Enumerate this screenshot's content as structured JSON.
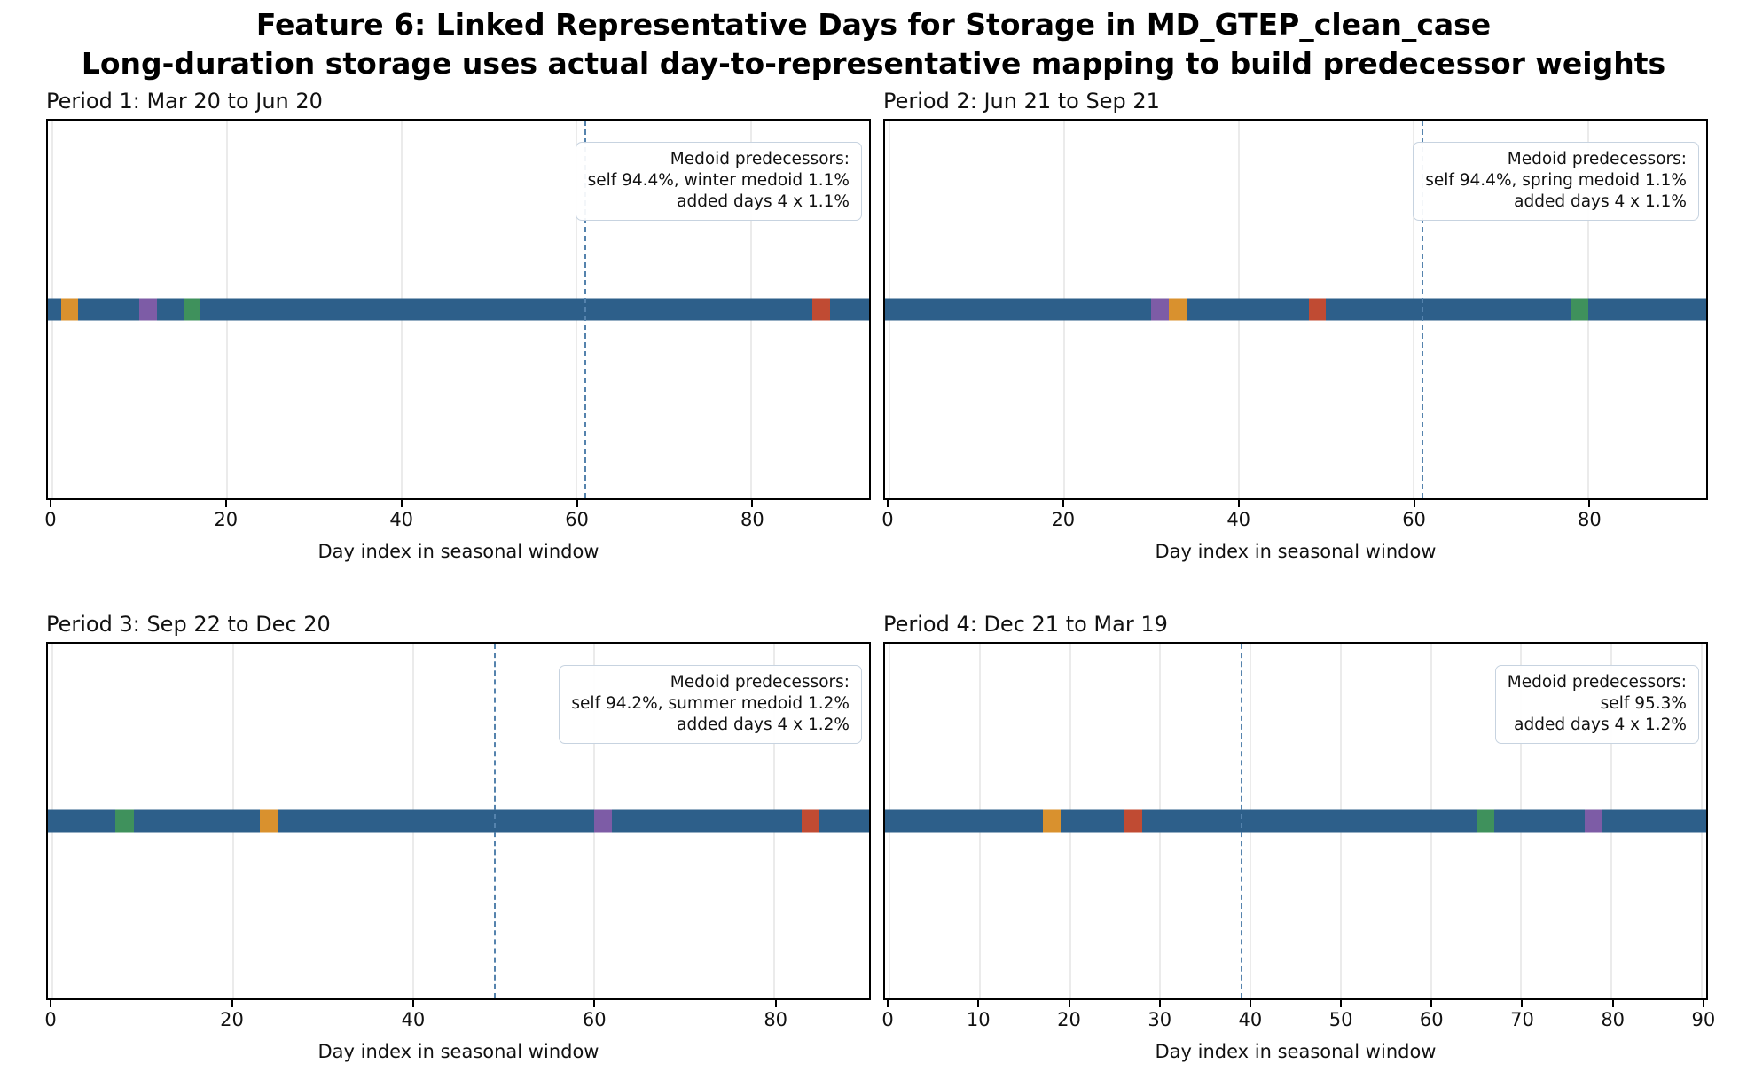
{
  "figure": {
    "title": "Feature 6: Linked Representative Days for Storage in MD_GTEP_clean_case",
    "subtitle": "Long-duration storage uses actual day-to-representative mapping to build predecessor weights"
  },
  "chart_data": {
    "type": "bar",
    "description": "Four horizontal day-timeline bars (one per seasonal period); blue = days mapped to self/representative, colored segments = added predecessor days; dashed vertical line = medoid day index",
    "colors": {
      "self": "#2d5f8a",
      "orange": "#d9912e",
      "purple": "#7d5ca6",
      "green": "#3f915c",
      "red": "#c04b33",
      "medoid_line": "#5583ad",
      "gridline": "#ebebeb",
      "annotation_border": "#c7d3e0"
    },
    "subplots": [
      {
        "title": "Period 1: Mar 20 to Jun 20",
        "xlabel": "Day index in seasonal window",
        "xlim": [
          -0.5,
          93.5
        ],
        "ticks": [
          0,
          20,
          40,
          60,
          80
        ],
        "medoid_line_day": 61,
        "bar_color_key": "self",
        "segments": [
          {
            "day_start": 1,
            "day_end": 3,
            "color_key": "orange"
          },
          {
            "day_start": 10,
            "day_end": 12,
            "color_key": "purple"
          },
          {
            "day_start": 15,
            "day_end": 17,
            "color_key": "green"
          },
          {
            "day_start": 87,
            "day_end": 89,
            "color_key": "red"
          }
        ],
        "annotation_lines": [
          "Medoid predecessors:",
          "self 94.4%, winter medoid 1.1%",
          "added days 4 x 1.1%"
        ]
      },
      {
        "title": "Period 2: Jun 21 to Sep 21",
        "xlabel": "Day index in seasonal window",
        "xlim": [
          -0.5,
          93.5
        ],
        "ticks": [
          0,
          20,
          40,
          60,
          80
        ],
        "medoid_line_day": 61,
        "bar_color_key": "self",
        "segments": [
          {
            "day_start": 30,
            "day_end": 32,
            "color_key": "purple"
          },
          {
            "day_start": 32,
            "day_end": 34,
            "color_key": "orange"
          },
          {
            "day_start": 48,
            "day_end": 50,
            "color_key": "red"
          },
          {
            "day_start": 78,
            "day_end": 80,
            "color_key": "green"
          }
        ],
        "annotation_lines": [
          "Medoid predecessors:",
          "self 94.4%, spring medoid 1.1%",
          "added days 4 x 1.1%"
        ]
      },
      {
        "title": "Period 3: Sep 22 to Dec 20",
        "xlabel": "Day index in seasonal window",
        "xlim": [
          -0.5,
          90.5
        ],
        "ticks": [
          0,
          20,
          40,
          60,
          80
        ],
        "medoid_line_day": 49,
        "bar_color_key": "self",
        "segments": [
          {
            "day_start": 7,
            "day_end": 9,
            "color_key": "green"
          },
          {
            "day_start": 23,
            "day_end": 25,
            "color_key": "orange"
          },
          {
            "day_start": 60,
            "day_end": 62,
            "color_key": "purple"
          },
          {
            "day_start": 83,
            "day_end": 85,
            "color_key": "red"
          }
        ],
        "annotation_lines": [
          "Medoid predecessors:",
          "self 94.2%, summer medoid 1.2%",
          "added days 4 x 1.2%"
        ]
      },
      {
        "title": "Period 4: Dec 21 to Mar 19",
        "xlabel": "Day index in seasonal window",
        "xlim": [
          -0.5,
          90.5
        ],
        "ticks": [
          0,
          10,
          20,
          30,
          40,
          50,
          60,
          70,
          80,
          90
        ],
        "medoid_line_day": 39,
        "bar_color_key": "self",
        "segments": [
          {
            "day_start": 17,
            "day_end": 19,
            "color_key": "orange"
          },
          {
            "day_start": 26,
            "day_end": 28,
            "color_key": "red"
          },
          {
            "day_start": 65,
            "day_end": 67,
            "color_key": "green"
          },
          {
            "day_start": 77,
            "day_end": 79,
            "color_key": "purple"
          }
        ],
        "annotation_lines": [
          "Medoid predecessors:",
          "self 95.3%",
          "added days 4 x 1.2%"
        ]
      }
    ]
  }
}
